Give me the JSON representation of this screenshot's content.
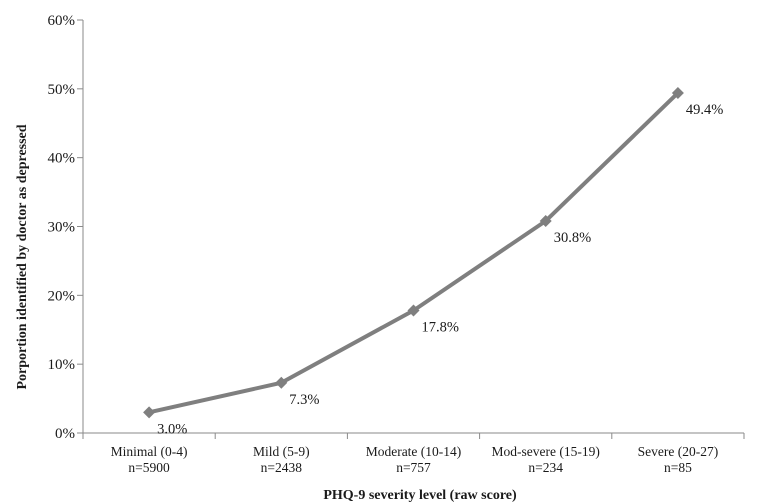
{
  "chart_data": {
    "type": "line",
    "title": "",
    "xlabel": "PHQ-9 severity level (raw score)",
    "ylabel": "Porportion identified by doctor as depressed",
    "categories": [
      {
        "name": "Minimal (0-4)",
        "n": "n=5900"
      },
      {
        "name": "Mild (5-9)",
        "n": "n=2438"
      },
      {
        "name": "Moderate (10-14)",
        "n": "n=757"
      },
      {
        "name": "Mod-severe (15-19)",
        "n": "n=234"
      },
      {
        "name": "Severe (20-27)",
        "n": "n=85"
      }
    ],
    "series": [
      {
        "values": [
          3.0,
          7.3,
          17.8,
          30.8,
          49.4
        ],
        "labels": [
          "3.0%",
          "7.3%",
          "17.8%",
          "30.8%",
          "49.4%"
        ],
        "color": "#7f7f7f",
        "marker": "diamond"
      }
    ],
    "yticks": [
      "0%",
      "10%",
      "20%",
      "30%",
      "40%",
      "50%",
      "60%"
    ],
    "ylim": [
      0,
      60
    ],
    "grid": false,
    "legend": "none"
  }
}
